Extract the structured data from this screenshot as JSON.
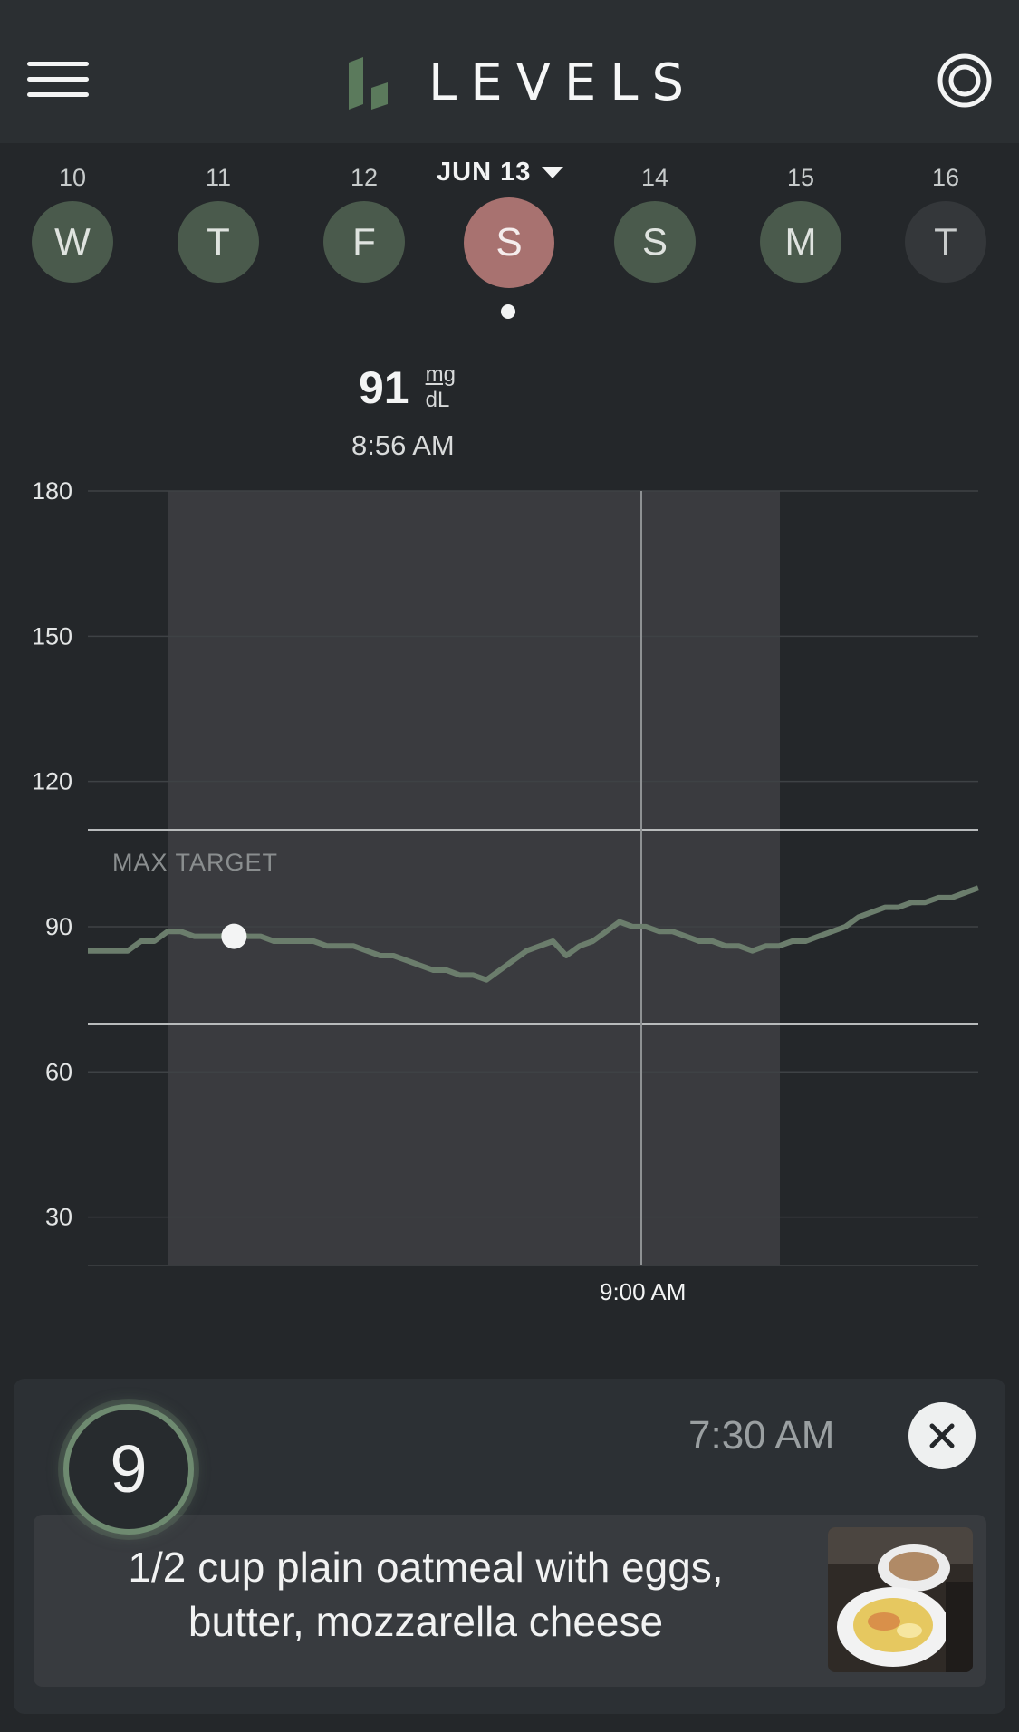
{
  "header": {
    "logo_text": "LEVELS",
    "menu_icon": "hamburger-menu-icon",
    "target_icon": "target-icon"
  },
  "day_strip": {
    "selected_date_label": "JUN 13",
    "days": [
      {
        "num": "10",
        "letter": "W",
        "state": "past"
      },
      {
        "num": "11",
        "letter": "T",
        "state": "past"
      },
      {
        "num": "12",
        "letter": "F",
        "state": "past"
      },
      {
        "num": "13",
        "letter": "S",
        "state": "selected"
      },
      {
        "num": "14",
        "letter": "S",
        "state": "past"
      },
      {
        "num": "15",
        "letter": "M",
        "state": "past"
      },
      {
        "num": "16",
        "letter": "T",
        "state": "future"
      }
    ]
  },
  "reading": {
    "value": "91",
    "unit_top": "mg",
    "unit_bottom": "dL",
    "time": "8:56 AM"
  },
  "chart_data": {
    "type": "line",
    "y_ticks": [
      "180",
      "150",
      "120",
      "90",
      "60",
      "30"
    ],
    "ylim": [
      20,
      180
    ],
    "x_label": "9:00 AM",
    "max_target_label": "MAX TARGET",
    "target_range": [
      70,
      110
    ],
    "grid": true,
    "series": [
      {
        "color": "#6b7d6c",
        "values": [
          85,
          85,
          85,
          85,
          87,
          87,
          89,
          89,
          88,
          88,
          88,
          89,
          88,
          88,
          87,
          87,
          87,
          87,
          86,
          86,
          86,
          85,
          84,
          84,
          83,
          82,
          81,
          81,
          80,
          80,
          79,
          81,
          83,
          85,
          86,
          87,
          84,
          86,
          87,
          89,
          91,
          90,
          90,
          89,
          89,
          88,
          87,
          87,
          86,
          86,
          85,
          86,
          86,
          87,
          87,
          88,
          89,
          90,
          92,
          93,
          94,
          94,
          95,
          95,
          96,
          96,
          97,
          98
        ]
      }
    ],
    "marker_value": 88,
    "highlight_window": "meal period"
  },
  "meal": {
    "score": "9",
    "time": "7:30 AM",
    "description_line1": "1/2 cup plain oatmeal with eggs,",
    "description_line2": "butter, mozzarella cheese",
    "close_icon": "close-icon",
    "accent_color": "#6e8a70"
  }
}
